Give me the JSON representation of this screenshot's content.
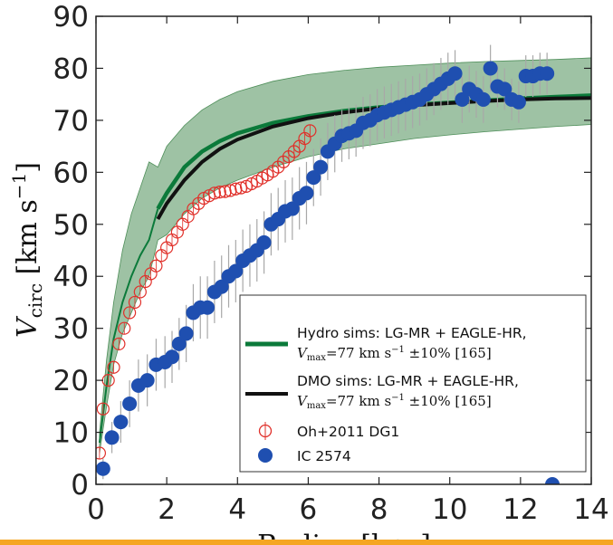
{
  "chart_data": {
    "type": "line",
    "xlabel": "Radius [kpc]",
    "ylabel": "V_circ [km s^-1]",
    "ylabel_parts": {
      "main": "V",
      "sub": "circ",
      "unit_open": " [km s",
      "unit_exp": "−1",
      "unit_close": "]"
    },
    "xlim": [
      0,
      14
    ],
    "ylim": [
      0,
      90
    ],
    "xticks": [
      0,
      2,
      4,
      6,
      8,
      10,
      12,
      14
    ],
    "yticks": [
      0,
      10,
      20,
      30,
      40,
      50,
      60,
      70,
      80,
      90
    ],
    "grid": false,
    "legend_position": "lower-right",
    "series": [
      {
        "name": "Hydro sims: LG-MR + EAGLE-HR,",
        "name_line2": "V_max=77 km s^-1 ±10% [165]",
        "kind": "band-line",
        "color": "#0b7a3a",
        "band_color": "#4f8f5a",
        "x": [
          0.1,
          0.3,
          0.5,
          0.75,
          1.0,
          1.25,
          1.5,
          1.75,
          2.0,
          2.5,
          3.0,
          3.5,
          4.0,
          5.0,
          6.0,
          7.0,
          8.0,
          9.0,
          10.0,
          11.0,
          12.0,
          13.0,
          14.0
        ],
        "y": [
          8,
          19,
          28,
          35,
          40,
          44,
          47,
          53,
          56,
          61,
          64,
          66,
          67.5,
          69.5,
          70.8,
          71.8,
          72.5,
          73,
          73.4,
          73.8,
          74.2,
          74.5,
          74.8
        ],
        "band_lower": [
          6,
          15,
          23,
          29,
          33,
          37,
          40,
          47,
          48,
          52,
          55,
          57,
          58.5,
          61,
          63,
          64.5,
          65.5,
          66.5,
          67.2,
          67.8,
          68.3,
          68.8,
          69.2
        ],
        "band_upper": [
          10,
          24,
          35,
          45,
          52,
          57,
          62,
          61,
          65,
          69,
          72,
          74,
          75.5,
          77.5,
          78.8,
          79.6,
          80.2,
          80.6,
          81,
          81.3,
          81.5,
          81.7,
          82
        ]
      },
      {
        "name": "DMO sims: LG-MR + EAGLE-HR,",
        "name_line2": "V_max=77 km s^-1 ±10% [165]",
        "kind": "line",
        "color": "#111111",
        "x": [
          1.75,
          2.0,
          2.5,
          3.0,
          3.5,
          4.0,
          5.0,
          6.0,
          7.0,
          8.0,
          9.0,
          10.0,
          11.0,
          12.0,
          13.0,
          14.0
        ],
        "y": [
          51,
          54,
          58.5,
          62,
          64.5,
          66.3,
          68.8,
          70.4,
          71.5,
          72.3,
          72.9,
          73.3,
          73.7,
          74,
          74.2,
          74.3
        ]
      },
      {
        "name": "Oh+2011 DG1",
        "kind": "open-circles",
        "color": "#e0302a",
        "x": [
          0.1,
          0.2,
          0.35,
          0.5,
          0.65,
          0.8,
          0.95,
          1.1,
          1.25,
          1.4,
          1.55,
          1.7,
          1.85,
          2.0,
          2.15,
          2.3,
          2.45,
          2.6,
          2.75,
          2.9,
          3.05,
          3.2,
          3.35,
          3.5,
          3.65,
          3.8,
          3.95,
          4.1,
          4.25,
          4.4,
          4.55,
          4.7,
          4.85,
          5.0,
          5.15,
          5.3,
          5.45,
          5.6,
          5.75,
          5.9,
          6.05
        ],
        "y": [
          6,
          14.5,
          20,
          22.5,
          27,
          30,
          33,
          35,
          37,
          39,
          40.5,
          42,
          44,
          45.5,
          47,
          48.5,
          50,
          51.5,
          53,
          54,
          55,
          55.5,
          56,
          56.2,
          56.3,
          56.5,
          56.8,
          57,
          57.3,
          57.8,
          58.3,
          58.9,
          59.5,
          60.2,
          61,
          62,
          63,
          64,
          65,
          66.5,
          68
        ]
      },
      {
        "name": "IC 2574",
        "kind": "filled-circles-with-errors",
        "color": "#1f4fb0",
        "x": [
          0.2,
          0.45,
          0.7,
          0.95,
          1.2,
          1.45,
          1.7,
          1.95,
          2.15,
          2.35,
          2.55,
          2.75,
          2.95,
          3.15,
          3.35,
          3.55,
          3.75,
          3.95,
          4.15,
          4.35,
          4.55,
          4.75,
          4.95,
          5.15,
          5.35,
          5.55,
          5.75,
          5.95,
          6.15,
          6.35,
          6.55,
          6.75,
          6.95,
          7.15,
          7.35,
          7.55,
          7.75,
          7.95,
          8.15,
          8.35,
          8.55,
          8.75,
          8.95,
          9.15,
          9.35,
          9.55,
          9.75,
          9.95,
          10.15,
          10.35,
          10.55,
          10.75,
          10.95,
          11.15,
          11.35,
          11.55,
          11.75,
          11.95,
          12.15,
          12.35,
          12.55,
          12.75,
          12.9
        ],
        "y": [
          3,
          9,
          12,
          15.5,
          19,
          20,
          23,
          23.5,
          24.5,
          27,
          29,
          33,
          34,
          34,
          37,
          38,
          40,
          41,
          43,
          44,
          45,
          46.5,
          50,
          51,
          52.5,
          53,
          55,
          56,
          59,
          61,
          64,
          65.5,
          67,
          67.5,
          68,
          69.5,
          70,
          71,
          71.5,
          72,
          72.5,
          73,
          73.5,
          74,
          75,
          76,
          77,
          78,
          79,
          74,
          76,
          75,
          74,
          80,
          76.5,
          76,
          74,
          73.5,
          78.5,
          78.5,
          79,
          79,
          0
        ],
        "yerr": [
          2,
          3,
          4,
          4.5,
          5,
          5,
          5,
          5,
          5,
          5,
          5.5,
          5.5,
          6,
          6,
          6,
          6,
          6,
          6,
          6,
          6,
          6,
          6,
          6,
          6,
          6,
          6,
          6,
          6,
          5.5,
          5.5,
          5.5,
          5.5,
          5,
          5,
          5,
          5,
          5,
          5,
          5,
          5,
          5,
          5,
          5,
          5,
          5,
          5,
          5,
          5,
          4.5,
          4.5,
          4.5,
          4.5,
          4.5,
          4.5,
          4,
          4,
          4,
          4,
          4,
          4,
          4,
          4,
          0
        ]
      }
    ]
  },
  "colors": {
    "hydro": "#0b7a3a",
    "hydro_band": "#4f8f5a",
    "dmo": "#111111",
    "oh2011": "#e0302a",
    "ic2574": "#1f4fb0",
    "error_bar": "#a8a8a8",
    "bottom_accent": "#f5a623"
  }
}
